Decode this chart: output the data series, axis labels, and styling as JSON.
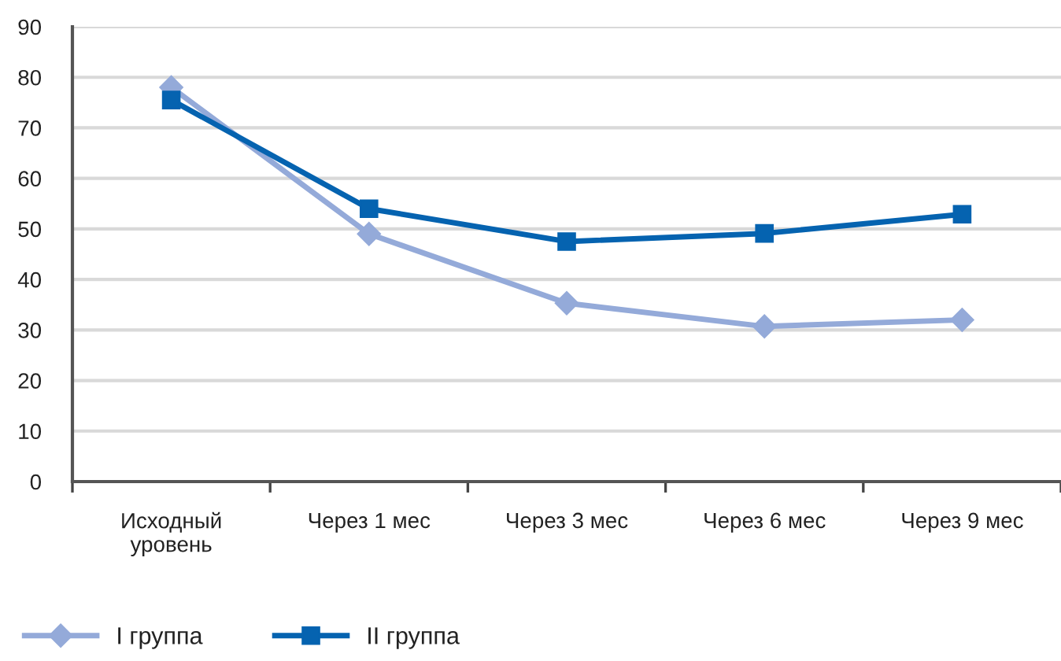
{
  "chart_data": {
    "type": "line",
    "categories": [
      "Исходный\nуровень",
      "Через 1 мес",
      "Через 3 мес",
      "Через 6 мес",
      "Через 9 мес"
    ],
    "series": [
      {
        "name": "I группа",
        "color": "#94aad9",
        "marker": "diamond",
        "values": [
          78,
          49,
          35.3,
          30.7,
          32
        ]
      },
      {
        "name": "II группа",
        "color": "#0563b0",
        "marker": "square",
        "values": [
          75.5,
          54,
          47.5,
          49.1,
          52.9
        ]
      }
    ],
    "ylim": [
      0,
      90
    ],
    "yticks": [
      0,
      10,
      20,
      30,
      40,
      50,
      60,
      70,
      80,
      90
    ],
    "grid": "y",
    "legend": "bottom left",
    "line_style": "solid"
  }
}
